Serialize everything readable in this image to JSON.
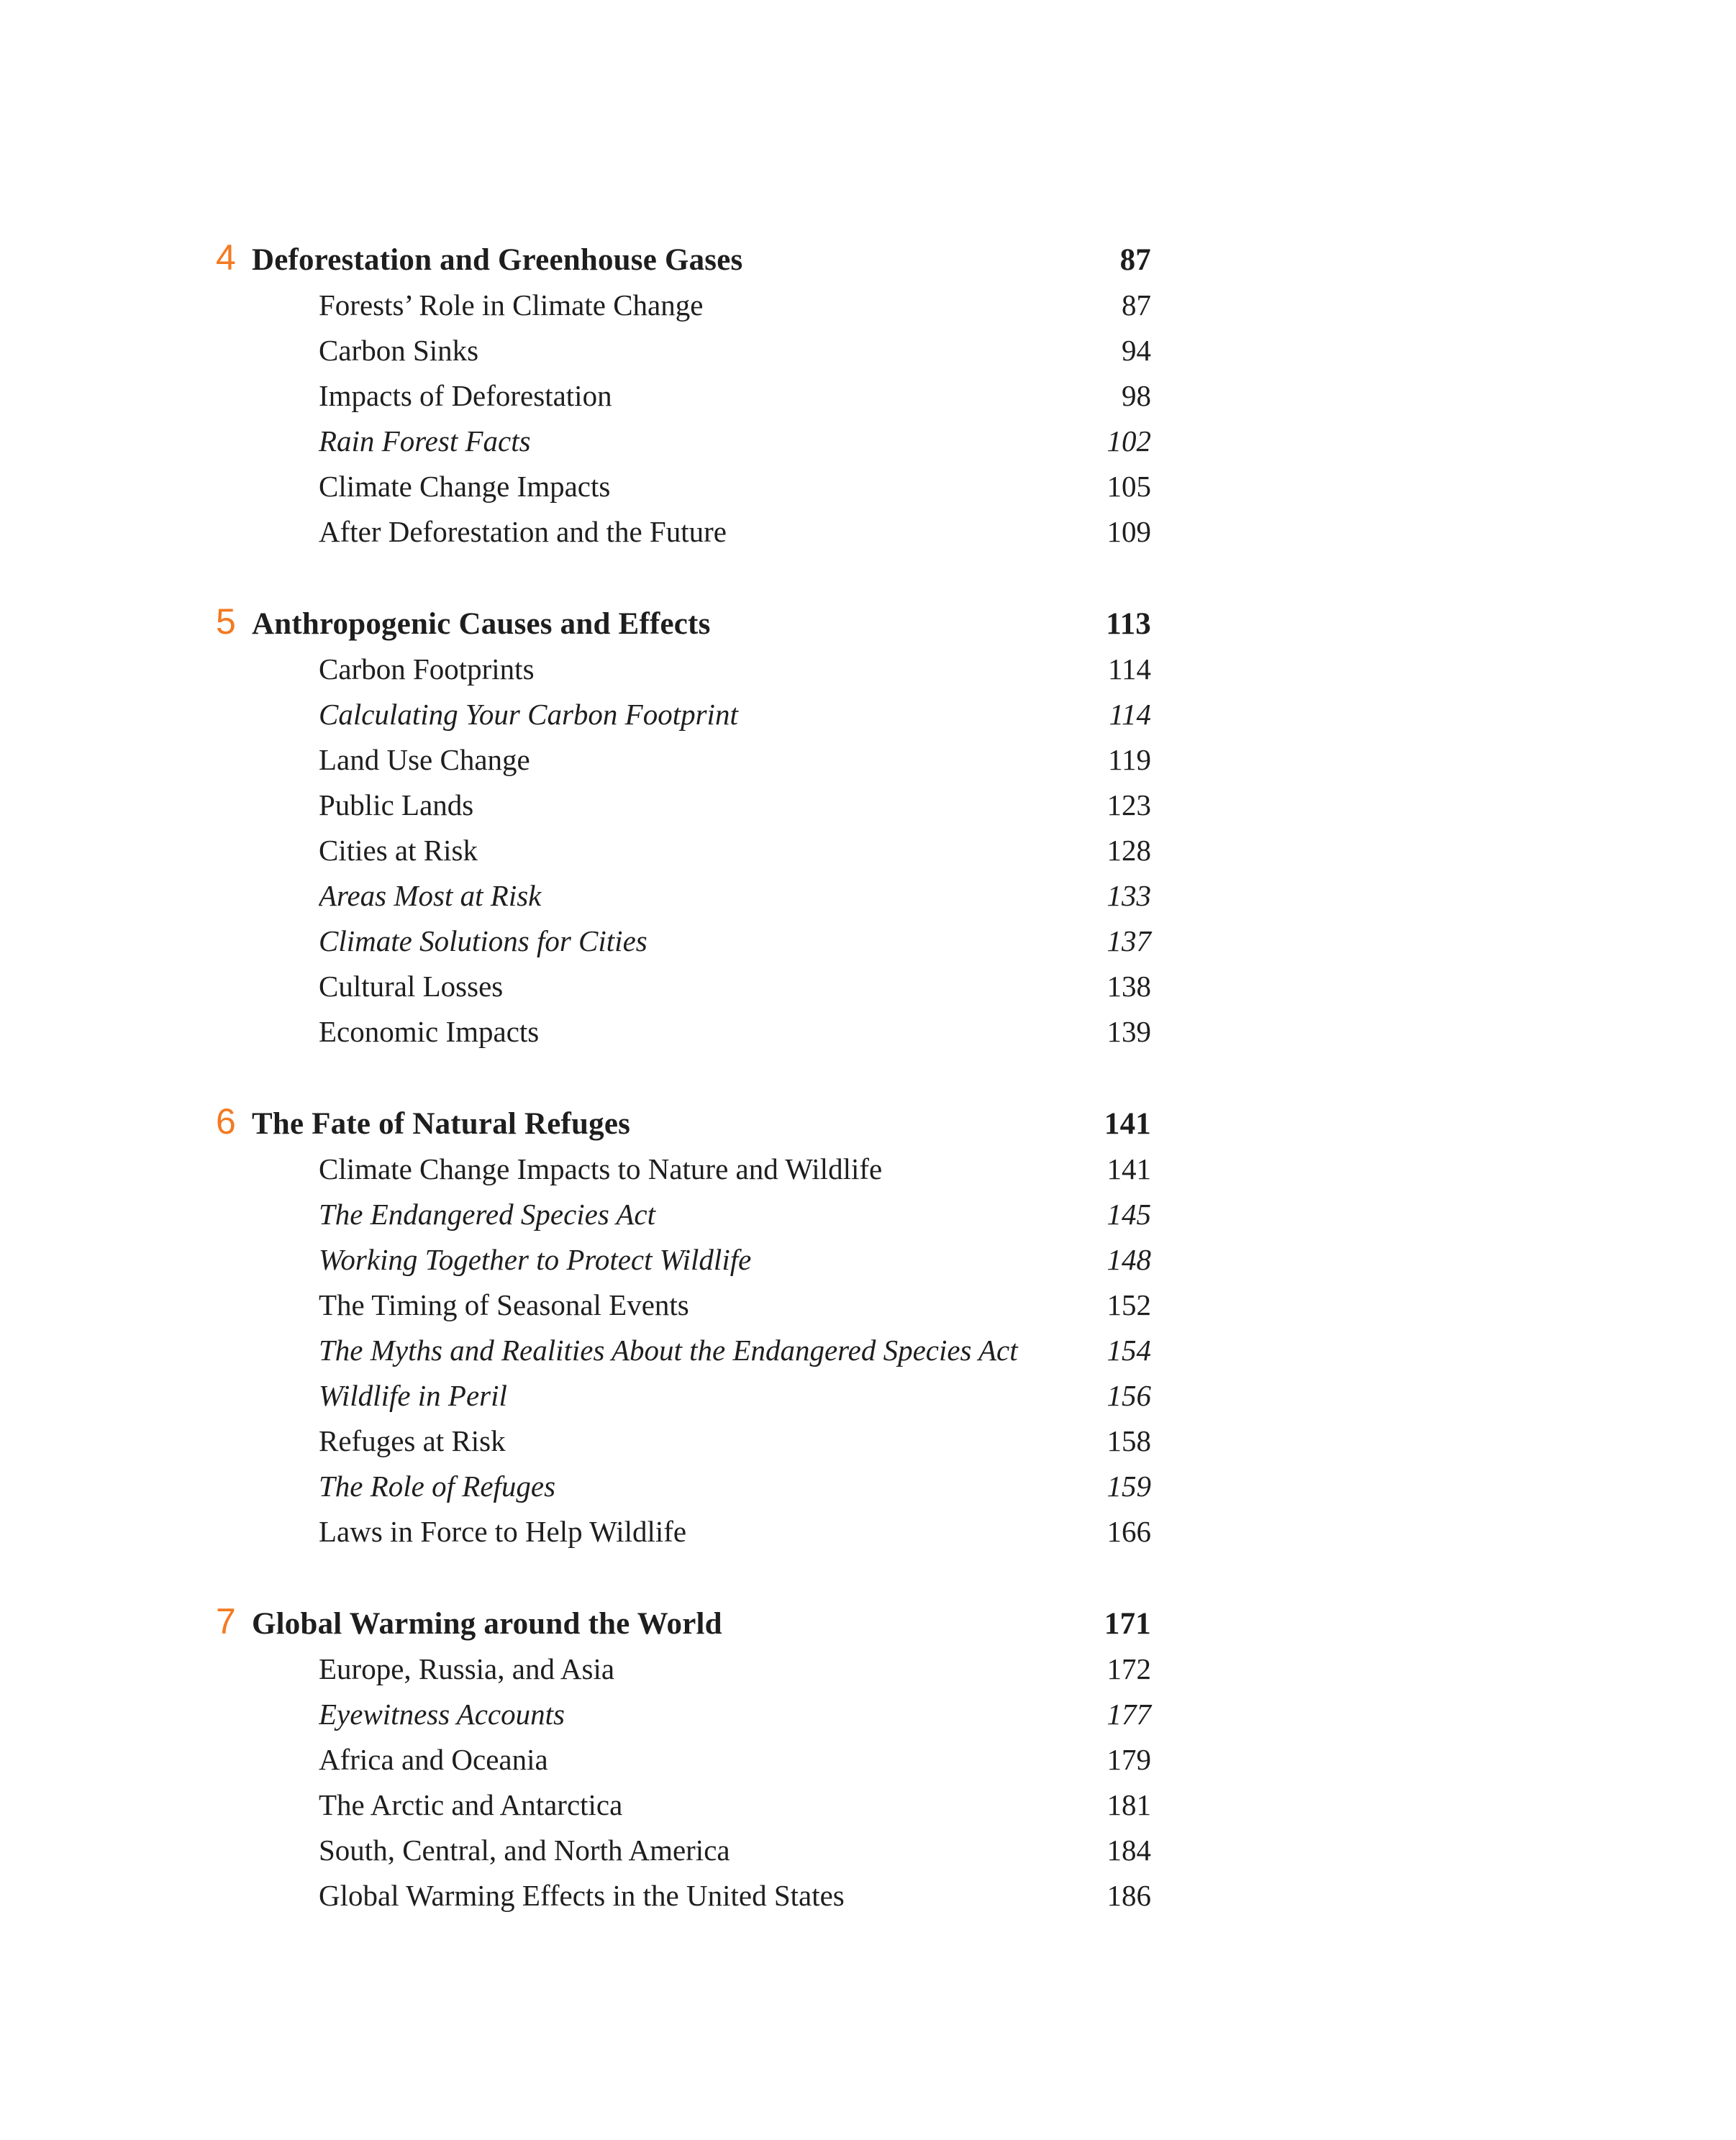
{
  "page": {
    "background_color": "#ffffff",
    "text_color": "#1e1e1e",
    "accent_color": "#F47A21"
  },
  "toc": {
    "sections": [
      {
        "number": "4",
        "title": "Deforestation and Greenhouse Gases",
        "page": "87",
        "entries": [
          {
            "title": "Forests’ Role in Climate Change",
            "page": "87",
            "style": ""
          },
          {
            "title": "Carbon Sinks",
            "page": "94",
            "style": ""
          },
          {
            "title": "Impacts of Deforestation",
            "page": "98",
            "style": ""
          },
          {
            "title": "Rain Forest Facts",
            "page": "102",
            "style": "italic"
          },
          {
            "title": "Climate Change Impacts",
            "page": "105",
            "style": ""
          },
          {
            "title": "After Deforestation and the Future",
            "page": "109",
            "style": ""
          }
        ]
      },
      {
        "number": "5",
        "title": "Anthropogenic Causes and Effects",
        "page": "113",
        "entries": [
          {
            "title": "Carbon Footprints",
            "page": "114",
            "style": ""
          },
          {
            "title": "Calculating Your Carbon Footprint",
            "page": "114",
            "style": "italic"
          },
          {
            "title": "Land Use Change",
            "page": "119",
            "style": ""
          },
          {
            "title": "Public Lands",
            "page": "123",
            "style": ""
          },
          {
            "title": "Cities at Risk",
            "page": "128",
            "style": ""
          },
          {
            "title": "Areas Most at Risk",
            "page": "133",
            "style": "italic"
          },
          {
            "title": "Climate Solutions for Cities",
            "page": "137",
            "style": "italic"
          },
          {
            "title": "Cultural Losses",
            "page": "138",
            "style": ""
          },
          {
            "title": "Economic Impacts",
            "page": "139",
            "style": ""
          }
        ]
      },
      {
        "number": "6",
        "title": "The Fate of Natural Refuges",
        "page": "141",
        "entries": [
          {
            "title": "Climate Change Impacts to Nature and Wildlife",
            "page": "141",
            "style": ""
          },
          {
            "title": "The Endangered Species Act",
            "page": "145",
            "style": "italic"
          },
          {
            "title": "Working Together to Protect Wildlife",
            "page": "148",
            "style": "italic"
          },
          {
            "title": "The Timing of Seasonal Events",
            "page": "152",
            "style": ""
          },
          {
            "title": "The Myths and Realities About the Endangered Species Act",
            "page": "154",
            "style": "italic"
          },
          {
            "title": "Wildlife in Peril",
            "page": "156",
            "style": "italic"
          },
          {
            "title": "Refuges at Risk",
            "page": "158",
            "style": ""
          },
          {
            "title": "The Role of Refuges",
            "page": "159",
            "style": "italic"
          },
          {
            "title": "Laws in Force to Help Wildlife",
            "page": "166",
            "style": ""
          }
        ]
      },
      {
        "number": "7",
        "title": "Global Warming around the World",
        "page": "171",
        "entries": [
          {
            "title": "Europe, Russia, and Asia",
            "page": "172",
            "style": ""
          },
          {
            "title": "Eyewitness Accounts",
            "page": "177",
            "style": "italic"
          },
          {
            "title": "Africa and Oceania",
            "page": "179",
            "style": ""
          },
          {
            "title": "The Arctic and Antarctica",
            "page": "181",
            "style": ""
          },
          {
            "title": "South, Central, and North America",
            "page": "184",
            "style": ""
          },
          {
            "title": "Global Warming Effects in the United States",
            "page": "186",
            "style": ""
          }
        ]
      }
    ]
  }
}
